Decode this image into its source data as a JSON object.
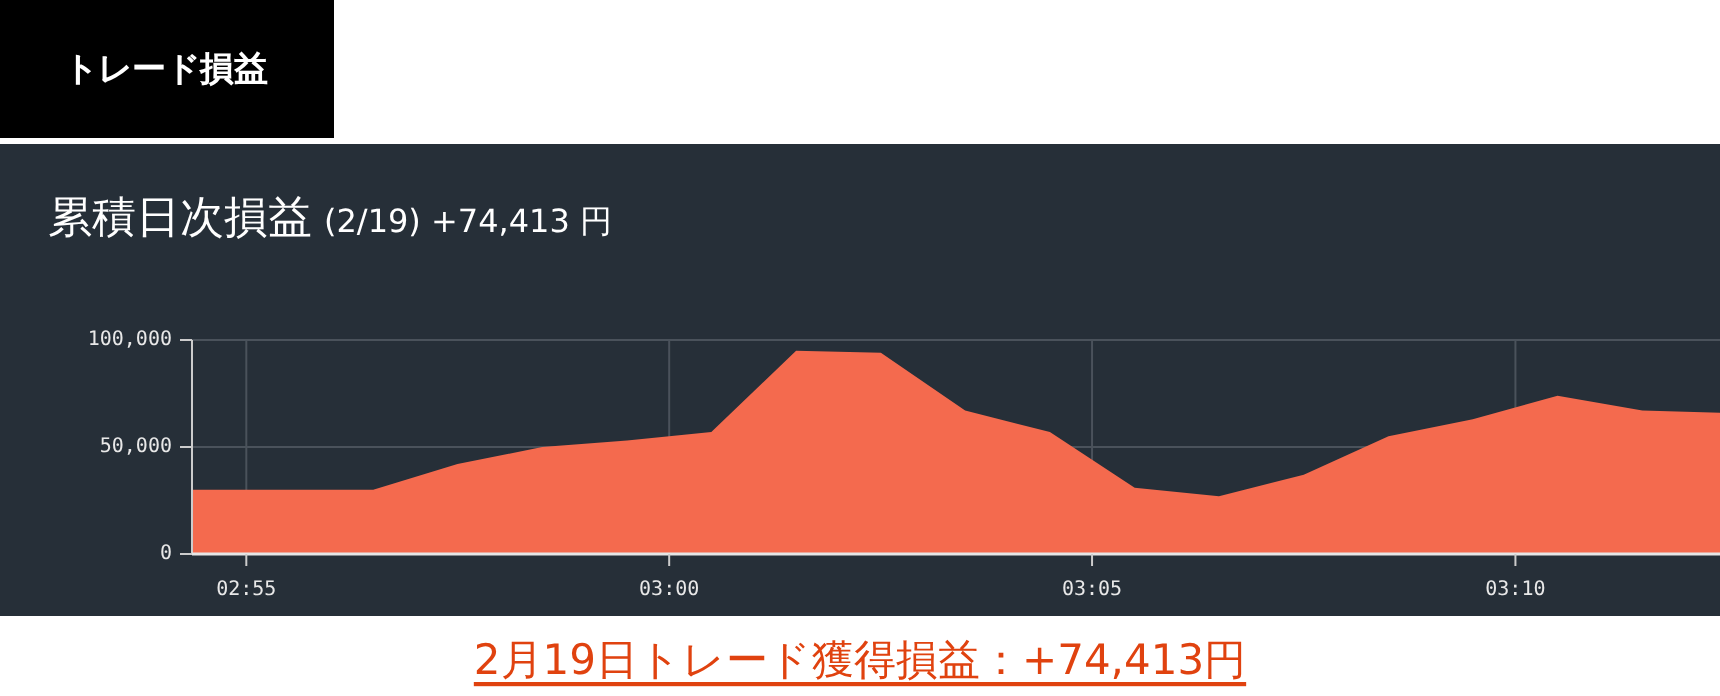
{
  "chart_data": {
    "type": "area",
    "title": "累積日次損益",
    "subtitle": "(2/19) +74,413 円",
    "annotations": [
      "トレード損益",
      "2月19日トレード獲得損益：+74,413円"
    ],
    "x": [
      2.906,
      2.9417,
      2.9583,
      2.975,
      2.9917,
      3.0083,
      3.025,
      3.0417,
      3.0583,
      3.075,
      3.0917,
      3.1083,
      3.125,
      3.1417,
      3.1583,
      3.175,
      3.1917,
      3.207
    ],
    "series": [
      {
        "color": "#f46a4e",
        "values": [
          30000,
          30000,
          42000,
          50000,
          53000,
          57000,
          95000,
          94000,
          67000,
          57000,
          31000,
          27000,
          37000,
          55000,
          63000,
          74000,
          67000,
          66000
        ]
      }
    ],
    "xlim": [
      2.906,
      3.207
    ],
    "xticks": [
      {
        "value": 2.9167,
        "label": "02:55"
      },
      {
        "value": 3,
        "label": "03:00"
      },
      {
        "value": 3.0833,
        "label": "03:05"
      },
      {
        "value": 3.1667,
        "label": "03:10"
      }
    ],
    "ylim": [
      0,
      100000
    ],
    "yticks": [
      {
        "value": 0,
        "label": "0"
      },
      {
        "value": 50000,
        "label": "50,000"
      },
      {
        "value": 100000,
        "label": "100,000"
      }
    ],
    "grid": true
  }
}
